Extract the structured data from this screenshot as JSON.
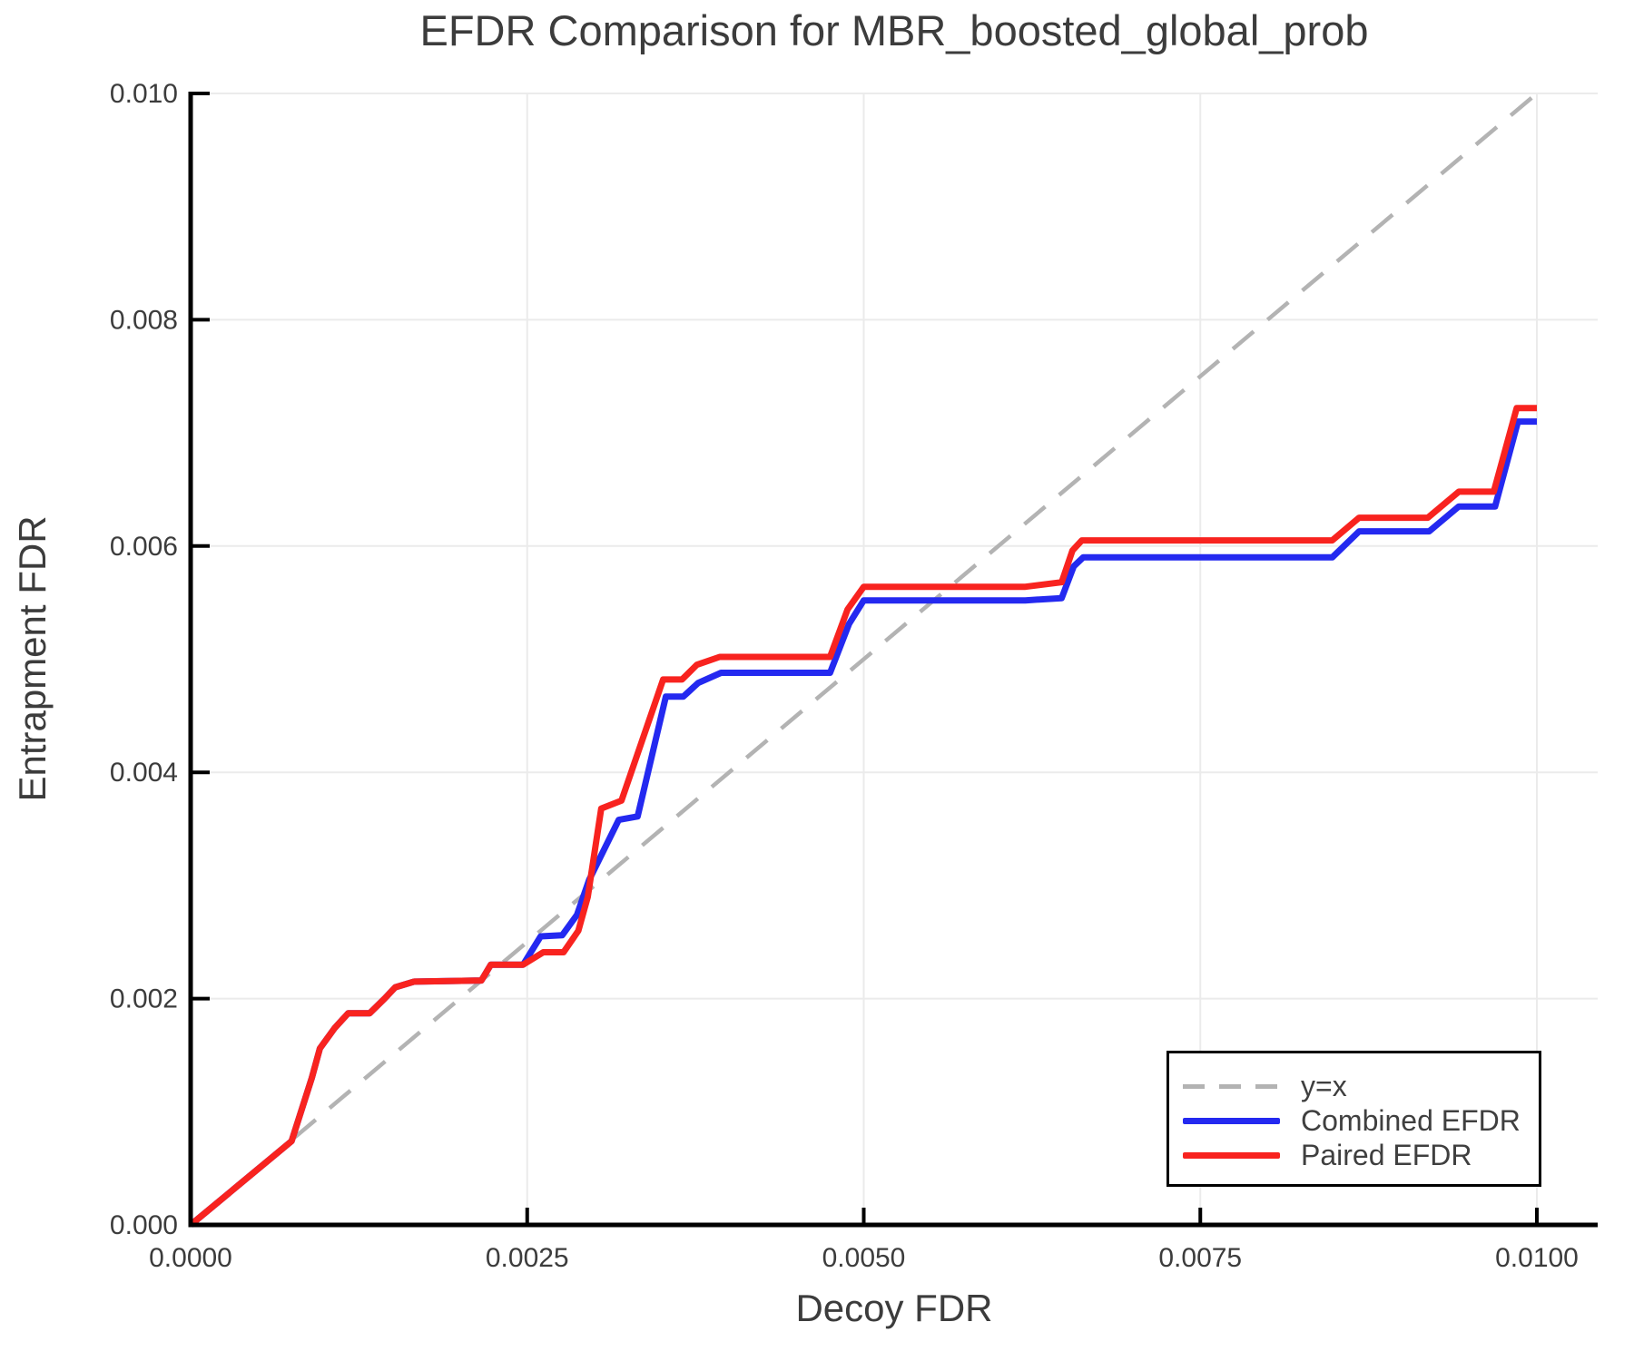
{
  "chart_data": {
    "type": "line",
    "title": "EFDR Comparison for MBR_boosted_global_prob",
    "xlabel": "Decoy FDR",
    "ylabel": "Entrapment FDR",
    "xlim": [
      0,
      0.01045
    ],
    "ylim": [
      0,
      0.01
    ],
    "grid": true,
    "legend_position": "bottom-right",
    "x_ticks": {
      "values": [
        0,
        0.0025,
        0.005,
        0.0075,
        0.01
      ],
      "labels": [
        "0.0000",
        "0.0025",
        "0.0050",
        "0.0075",
        "0.0100"
      ]
    },
    "y_ticks": {
      "values": [
        0,
        0.002,
        0.004,
        0.006,
        0.008,
        0.01
      ],
      "labels": [
        "0.000",
        "0.002",
        "0.004",
        "0.006",
        "0.008",
        "0.010"
      ]
    },
    "colors": {
      "axis": "#000000",
      "grid": "#ebebeb",
      "text": "#3c3c3c",
      "background": "#ffffff"
    },
    "series": [
      {
        "name": "y=x",
        "color": "#b3b3b3",
        "style": "dashed",
        "line_width": 4.5,
        "points": [
          [
            0,
            0
          ],
          [
            0.01,
            0.01
          ]
        ]
      },
      {
        "name": "Combined EFDR",
        "color": "#2429f0",
        "style": "solid",
        "line_width": 7,
        "points": [
          [
            0,
            0
          ],
          [
            0.00075,
            0.00074
          ],
          [
            0.0009,
            0.0013
          ],
          [
            0.00096,
            0.00156
          ],
          [
            0.00107,
            0.00174
          ],
          [
            0.00117,
            0.00187
          ],
          [
            0.00133,
            0.00187
          ],
          [
            0.00144,
            0.002
          ],
          [
            0.00152,
            0.0021
          ],
          [
            0.00166,
            0.00215
          ],
          [
            0.00216,
            0.00216
          ],
          [
            0.00223,
            0.0023
          ],
          [
            0.00247,
            0.0023
          ],
          [
            0.0026,
            0.00255
          ],
          [
            0.00276,
            0.00256
          ],
          [
            0.00287,
            0.00274
          ],
          [
            0.00296,
            0.00305
          ],
          [
            0.00318,
            0.00358
          ],
          [
            0.00332,
            0.00361
          ],
          [
            0.00353,
            0.00467
          ],
          [
            0.00366,
            0.00467
          ],
          [
            0.00377,
            0.00479
          ],
          [
            0.00394,
            0.00488
          ],
          [
            0.00475,
            0.00488
          ],
          [
            0.00489,
            0.00531
          ],
          [
            0.005,
            0.00552
          ],
          [
            0.0062,
            0.00552
          ],
          [
            0.00647,
            0.00554
          ],
          [
            0.00656,
            0.00582
          ],
          [
            0.00663,
            0.0059
          ],
          [
            0.0067,
            0.0059
          ],
          [
            0.00848,
            0.0059
          ],
          [
            0.00868,
            0.00613
          ],
          [
            0.0092,
            0.00613
          ],
          [
            0.00942,
            0.00635
          ],
          [
            0.00969,
            0.00635
          ],
          [
            0.00986,
            0.0071
          ],
          [
            0.01,
            0.0071
          ]
        ]
      },
      {
        "name": "Paired EFDR",
        "color": "#f8231f",
        "style": "solid",
        "line_width": 7,
        "points": [
          [
            0,
            0
          ],
          [
            0.00075,
            0.00074
          ],
          [
            0.0009,
            0.0013
          ],
          [
            0.00096,
            0.00156
          ],
          [
            0.00107,
            0.00174
          ],
          [
            0.00117,
            0.00187
          ],
          [
            0.00133,
            0.00187
          ],
          [
            0.00144,
            0.002
          ],
          [
            0.00152,
            0.0021
          ],
          [
            0.00166,
            0.00215
          ],
          [
            0.00216,
            0.00216
          ],
          [
            0.00223,
            0.0023
          ],
          [
            0.00247,
            0.0023
          ],
          [
            0.00262,
            0.00241
          ],
          [
            0.00277,
            0.00241
          ],
          [
            0.00288,
            0.0026
          ],
          [
            0.00295,
            0.0029
          ],
          [
            0.00305,
            0.00368
          ],
          [
            0.0032,
            0.00375
          ],
          [
            0.00351,
            0.00482
          ],
          [
            0.00365,
            0.00482
          ],
          [
            0.00376,
            0.00495
          ],
          [
            0.00393,
            0.00502
          ],
          [
            0.00475,
            0.00502
          ],
          [
            0.00488,
            0.00544
          ],
          [
            0.005,
            0.00564
          ],
          [
            0.0062,
            0.00564
          ],
          [
            0.00647,
            0.00568
          ],
          [
            0.00655,
            0.00596
          ],
          [
            0.00662,
            0.00605
          ],
          [
            0.0067,
            0.00605
          ],
          [
            0.00848,
            0.00605
          ],
          [
            0.00868,
            0.00625
          ],
          [
            0.00919,
            0.00625
          ],
          [
            0.00942,
            0.00648
          ],
          [
            0.00968,
            0.00648
          ],
          [
            0.00985,
            0.00722
          ],
          [
            0.01,
            0.00722
          ]
        ]
      }
    ]
  }
}
